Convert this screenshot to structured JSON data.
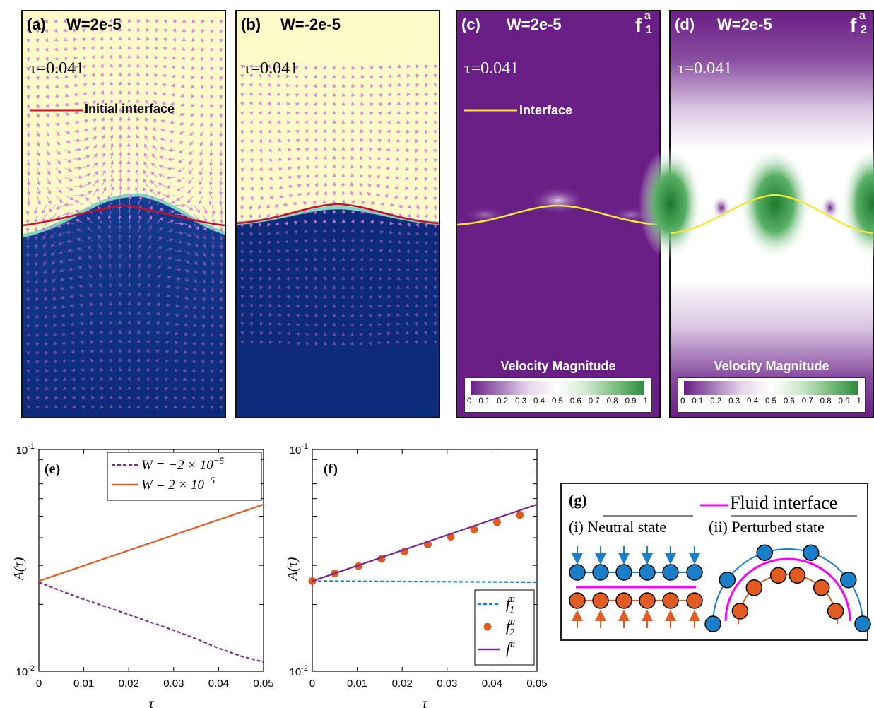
{
  "panels": {
    "a": {
      "label": "(a)",
      "title": "W=2e-5",
      "tau": "τ=0.041",
      "legend": "Initial interface"
    },
    "b": {
      "label": "(b)",
      "title": "W=-2e-5",
      "tau": "τ=0.041"
    },
    "c": {
      "label": "(c)",
      "title": "W=2e-5",
      "tau": "τ=0.041",
      "legend": "Interface",
      "corner": "f",
      "corner_sup": "a",
      "corner_sub": "1",
      "colorbar_title": "Velocity Magnitude",
      "colorbar_ticks": [
        "0",
        "0.1",
        "0.2",
        "0.3",
        "0.4",
        "0.5",
        "0.6",
        "0.7",
        "0.8",
        "0.9",
        "1"
      ]
    },
    "d": {
      "label": "(d)",
      "title": "W=2e-5",
      "tau": "τ=0.041",
      "corner": "f",
      "corner_sup": "a",
      "corner_sub": "2",
      "colorbar_title": "Velocity Magnitude",
      "colorbar_ticks": [
        "0",
        "0.1",
        "0.2",
        "0.3",
        "0.4",
        "0.5",
        "0.6",
        "0.7",
        "0.8",
        "0.9",
        "1"
      ]
    },
    "g": {
      "label": "(g)",
      "legend": "Fluid interface",
      "state_i": "(i) Neutral state",
      "state_i_num": "(i)",
      "state_i_text": "Neutral state",
      "state_ii_num": "(ii)",
      "state_ii_text": "Perturbed state"
    }
  },
  "colors": {
    "light_fluid": "#fdf9c8",
    "heavy_fluid": "#0e2a7a",
    "purple": "#7b2a8c",
    "green": "#2e8b3e",
    "red_line": "#c8102e",
    "yellow_line": "#f5e63a",
    "orange": "#e05c22",
    "blue_dash": "#1a7fc8",
    "magenta": "#ff00ff",
    "blue_particle": "#1a7fc8"
  },
  "chart_data": [
    {
      "panel": "(e)",
      "type": "line",
      "ylabel": "A(τ)",
      "xlabel": "τ",
      "yscale": "log",
      "xlim": [
        0,
        0.05
      ],
      "ylim": [
        0.01,
        0.1
      ],
      "x_ticks": [
        "0",
        "0.01",
        "0.02",
        "0.03",
        "0.04",
        "0.05"
      ],
      "y_ticks": [
        "10-2",
        "10-1"
      ],
      "legend_position": "top-right",
      "series": [
        {
          "name": "W = −2 × 10−5",
          "style": "dashed",
          "color": "#7b2a8c",
          "x": [
            0,
            0.005,
            0.01,
            0.015,
            0.02,
            0.025,
            0.03,
            0.035,
            0.04,
            0.045,
            0.05
          ],
          "y": [
            0.0252,
            0.023,
            0.0211,
            0.0195,
            0.018,
            0.0166,
            0.0153,
            0.014,
            0.0127,
            0.0117,
            0.011
          ]
        },
        {
          "name": "W = 2 × 10−5",
          "style": "solid",
          "color": "#e05c22",
          "x": [
            0,
            0.05
          ],
          "y": [
            0.0255,
            0.0565
          ]
        }
      ]
    },
    {
      "panel": "(f)",
      "type": "line",
      "ylabel": "A(τ)",
      "xlabel": "τ",
      "yscale": "log",
      "xlim": [
        0,
        0.05
      ],
      "ylim": [
        0.01,
        0.1
      ],
      "x_ticks": [
        "0",
        "0.01",
        "0.02",
        "0.03",
        "0.04",
        "0.05"
      ],
      "y_ticks": [
        "10-2",
        "10-1"
      ],
      "legend_position": "bottom-right",
      "series": [
        {
          "name": "f1a",
          "style": "dashed",
          "color": "#1a7fc8",
          "x": [
            0,
            0.05
          ],
          "y": [
            0.0255,
            0.0252
          ]
        },
        {
          "name": "f2a",
          "style": "markers",
          "color": "#e05c22",
          "x": [
            0,
            0.005,
            0.0103,
            0.0154,
            0.0205,
            0.0257,
            0.0308,
            0.036,
            0.0411,
            0.0462
          ],
          "y": [
            0.0255,
            0.0276,
            0.0298,
            0.0321,
            0.0346,
            0.0373,
            0.0404,
            0.0435,
            0.047,
            0.0506
          ]
        },
        {
          "name": "fa",
          "style": "solid",
          "color": "#7b2a8c",
          "x": [
            0,
            0.05
          ],
          "y": [
            0.0255,
            0.0565
          ]
        }
      ]
    }
  ]
}
